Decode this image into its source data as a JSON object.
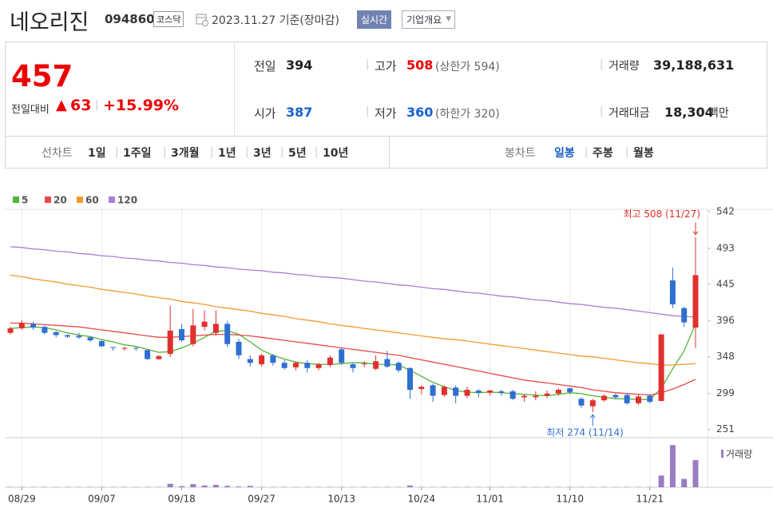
{
  "header": {
    "name": "네오리진",
    "code": "094860",
    "market": "코스닥",
    "date": "2023.11.27 기준(장마감)",
    "realtime": "실시간",
    "overview": "기업개요"
  },
  "summary": {
    "price": "457",
    "change_label": "전일대비",
    "change_arrow": "▲",
    "change": "63",
    "change_rate": "+15.99%",
    "prev_label": "전일",
    "prev": "394",
    "open_label": "시가",
    "open": "387",
    "high_label": "고가",
    "high": "508",
    "high_note": "(상한가 594)",
    "low_label": "저가",
    "low": "360",
    "low_note": "(하한가 320)",
    "volume_label": "거래량",
    "volume": "39,188,631",
    "amount_label": "거래대금",
    "amount": "18,304",
    "amount_unit": "백만"
  },
  "tabs": {
    "line_label": "선차트",
    "periods": [
      "1일",
      "1주일",
      "3개월",
      "1년",
      "3년",
      "5년",
      "10년"
    ],
    "candle_label": "봉차트",
    "candles": [
      "일봉",
      "주봉",
      "월봉"
    ]
  },
  "chart_data": {
    "type": "candlestick",
    "categories": [
      null,
      "08/29",
      null,
      null,
      null,
      null,
      null,
      null,
      "09/07",
      null,
      null,
      null,
      null,
      null,
      null,
      "09/18",
      null,
      null,
      null,
      null,
      null,
      null,
      "09/27",
      null,
      null,
      null,
      null,
      null,
      null,
      "10/13",
      null,
      null,
      null,
      null,
      null,
      null,
      "10/24",
      null,
      null,
      null,
      null,
      null,
      "11/01",
      null,
      null,
      null,
      null,
      null,
      null,
      "11/10",
      null,
      null,
      null,
      null,
      null,
      null,
      "11/21",
      null,
      null,
      null,
      null
    ],
    "open": [
      380,
      386,
      392,
      388,
      381,
      377,
      376,
      374,
      369,
      361,
      360,
      360,
      357,
      345,
      352,
      385,
      365,
      388,
      380,
      392,
      368,
      345,
      338,
      350,
      340,
      334,
      340,
      333,
      337,
      358,
      338,
      338,
      332,
      345,
      340,
      333,
      305,
      310,
      297,
      307,
      296,
      303,
      300,
      302,
      302,
      294,
      294,
      296,
      299,
      306,
      292,
      282,
      290,
      297,
      297,
      286,
      296,
      289,
      450,
      413,
      387
    ],
    "high": [
      388,
      397,
      395,
      390,
      382,
      378,
      380,
      375,
      370,
      361,
      361,
      361,
      357,
      350,
      416,
      392,
      412,
      410,
      410,
      396,
      372,
      350,
      352,
      352,
      344,
      342,
      344,
      340,
      350,
      360,
      340,
      342,
      350,
      356,
      342,
      334,
      310,
      312,
      310,
      310,
      308,
      305,
      304,
      304,
      304,
      298,
      302,
      303,
      306,
      307,
      294,
      292,
      298,
      299,
      300,
      297,
      298,
      378,
      467,
      415,
      508
    ],
    "low": [
      378,
      384,
      384,
      378,
      374,
      373,
      372,
      368,
      361,
      356,
      356,
      356,
      344,
      344,
      348,
      368,
      362,
      383,
      376,
      361,
      345,
      335,
      335,
      336,
      331,
      330,
      327,
      330,
      334,
      337,
      327,
      334,
      330,
      333,
      327,
      292,
      298,
      288,
      295,
      286,
      293,
      294,
      296,
      296,
      290,
      288,
      290,
      293,
      296,
      298,
      280,
      274,
      288,
      292,
      284,
      284,
      286,
      289,
      413,
      388,
      360
    ],
    "close": [
      386,
      393,
      387,
      380,
      377,
      375,
      374,
      370,
      362,
      360,
      360,
      359,
      345,
      349,
      383,
      370,
      390,
      395,
      392,
      365,
      350,
      340,
      350,
      340,
      333,
      340,
      333,
      338,
      347,
      340,
      333,
      339,
      342,
      335,
      330,
      304,
      308,
      296,
      308,
      296,
      304,
      300,
      303,
      300,
      292,
      296,
      296,
      299,
      304,
      301,
      283,
      290,
      296,
      294,
      286,
      295,
      288,
      378,
      418,
      394,
      457
    ],
    "up_color": "#e0302d",
    "down_color": "#2f6fd1",
    "ylim": [
      240,
      545
    ],
    "yticks": [
      251,
      299,
      348,
      396,
      445,
      493,
      542
    ],
    "grid": "x",
    "ma_series": [
      {
        "name": "5",
        "color": "#54b435",
        "values": [
          386,
          387,
          388,
          387,
          384,
          380,
          377,
          375,
          371,
          368,
          364,
          362,
          358,
          354,
          355,
          360,
          366,
          374,
          382,
          383,
          378,
          368,
          357,
          350,
          345,
          341,
          339,
          338,
          338,
          339,
          340,
          340,
          338,
          338,
          337,
          330,
          322,
          314,
          308,
          303,
          301,
          300,
          301,
          300,
          299,
          298,
          297,
          296,
          298,
          300,
          299,
          296,
          294,
          292,
          292,
          291,
          291,
          306,
          332,
          356,
          392
        ]
      },
      {
        "name": "20",
        "color": "#e84a4a",
        "values": [
          393,
          393,
          392,
          391,
          390,
          389,
          388,
          386,
          384,
          382,
          380,
          378,
          376,
          374,
          374,
          375,
          376,
          377,
          378,
          378,
          377,
          376,
          374,
          372,
          370,
          368,
          366,
          364,
          362,
          360,
          358,
          356,
          354,
          352,
          350,
          347,
          344,
          341,
          338,
          335,
          332,
          329,
          326,
          323,
          320,
          317,
          315,
          313,
          311,
          309,
          307,
          304,
          302,
          300,
          299,
          298,
          297,
          300,
          305,
          311,
          318
        ]
      },
      {
        "name": "60",
        "color": "#f39a32",
        "values": [
          457,
          455,
          452,
          450,
          448,
          445,
          443,
          441,
          438,
          436,
          434,
          432,
          429,
          427,
          425,
          422,
          420,
          418,
          415,
          413,
          411,
          409,
          406,
          404,
          402,
          399,
          397,
          395,
          392,
          390,
          388,
          386,
          384,
          382,
          380,
          378,
          376,
          374,
          372,
          371,
          369,
          367,
          365,
          363,
          361,
          359,
          357,
          355,
          353,
          351,
          349,
          348,
          346,
          344,
          342,
          340,
          339,
          337,
          337,
          338,
          339
        ]
      },
      {
        "name": "120",
        "color": "#a77fd6",
        "values": [
          495,
          494,
          492,
          491,
          489,
          488,
          486,
          485,
          483,
          482,
          480,
          479,
          477,
          476,
          474,
          473,
          471,
          470,
          468,
          467,
          465,
          464,
          463,
          461,
          460,
          458,
          457,
          455,
          454,
          453,
          451,
          449,
          448,
          446,
          444,
          443,
          441,
          439,
          438,
          436,
          434,
          433,
          431,
          429,
          428,
          426,
          424,
          423,
          421,
          419,
          418,
          416,
          414,
          413,
          411,
          409,
          407,
          405,
          403,
          402,
          401
        ]
      }
    ],
    "volume": {
      "name": "거래량",
      "color": "#9a7cc4",
      "ylim": [
        0,
        67000000
      ],
      "values": [
        400000,
        400000,
        400000,
        400000,
        400000,
        400000,
        400000,
        400000,
        400000,
        400000,
        400000,
        400000,
        400000,
        400000,
        5000000,
        1500000,
        4500000,
        2500000,
        3500000,
        2000000,
        1000000,
        2000000,
        400000,
        400000,
        400000,
        400000,
        400000,
        400000,
        400000,
        400000,
        400000,
        400000,
        400000,
        400000,
        400000,
        2500000,
        400000,
        400000,
        400000,
        400000,
        400000,
        400000,
        400000,
        400000,
        400000,
        400000,
        400000,
        400000,
        400000,
        400000,
        400000,
        400000,
        400000,
        400000,
        400000,
        400000,
        400000,
        17000000,
        61000000,
        12000000,
        39188631
      ]
    },
    "annotations": [
      {
        "text": "최고 508 (11/27)",
        "color": "#e0302d"
      },
      {
        "text": "최저 274 (11/14)",
        "color": "#2f6fd1"
      }
    ]
  }
}
